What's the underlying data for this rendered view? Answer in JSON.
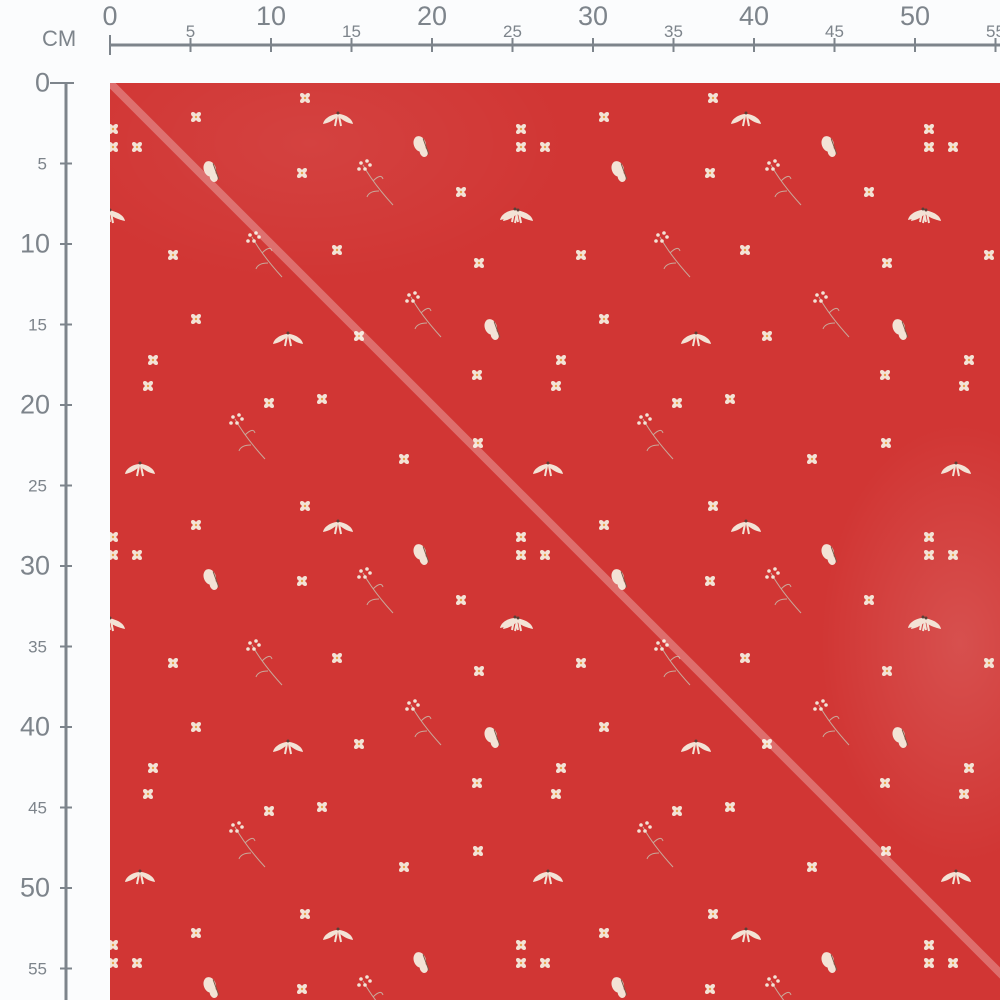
{
  "ruler": {
    "unit": "CM",
    "top_labels": [
      "0",
      "5",
      "10",
      "15",
      "20",
      "25",
      "30",
      "35",
      "40",
      "45",
      "50",
      "55"
    ],
    "left_labels": [
      "0",
      "5",
      "10",
      "15",
      "20",
      "25",
      "30",
      "35",
      "40",
      "45",
      "50",
      "55"
    ]
  },
  "colors": {
    "fabric": "#d13634",
    "motif": "#f3e3d6",
    "ruler": "#7d848b"
  },
  "preview": {
    "pattern_motifs": [
      "flower-icon",
      "butterfly-icon",
      "dragonfly-icon",
      "sprig-icon"
    ],
    "diagonal_highlight": true
  }
}
